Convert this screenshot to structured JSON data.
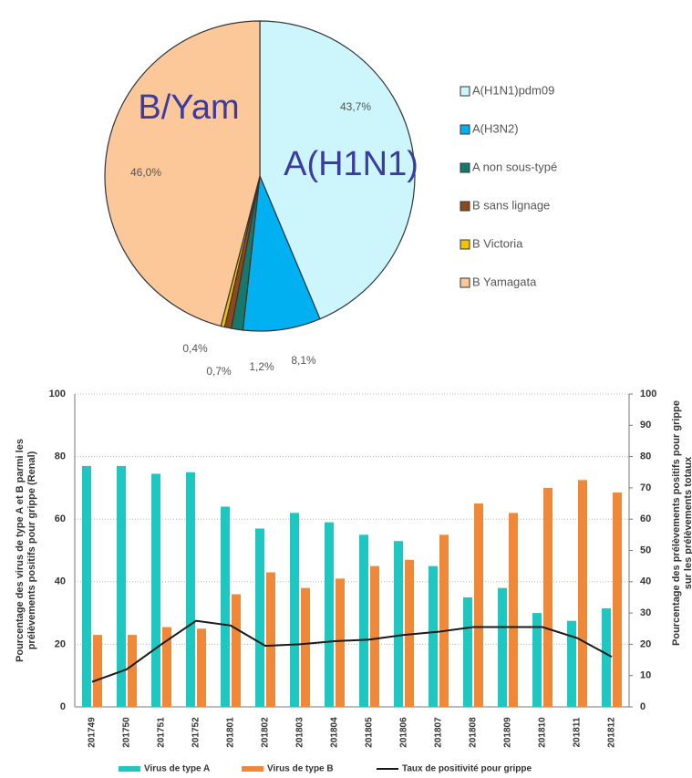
{
  "chart_data": [
    {
      "type": "pie",
      "annotations": [
        "B/Yam",
        "A(H1N1)"
      ],
      "categories": [
        "A(H1N1)pdm09",
        "A(H3N2)",
        "A non sous-typé",
        "B sans lignage",
        "B Victoria",
        "B Yamagata"
      ],
      "values": [
        43.7,
        8.1,
        1.2,
        0.7,
        0.4,
        46.0
      ],
      "value_labels": [
        "43,7%",
        "8,1%",
        "1,2%",
        "0,7%",
        "0,4%",
        "46,0%"
      ],
      "colors": [
        "#ccf6fb",
        "#00b0f0",
        "#17786c",
        "#8c4a1c",
        "#f2c200",
        "#fcc89a"
      ],
      "legend": "right"
    },
    {
      "type": "bar",
      "ylabel": [
        "Pourcentage des virus de type A et B parmi les",
        "prélèvements positifs pour grippe (Renal)"
      ],
      "y2label": [
        "Pourcentage des prélèvements positifs pour grippe",
        "sur les prélèvements totaux"
      ],
      "categories": [
        "201749",
        "201750",
        "201751",
        "201752",
        "201801",
        "201802",
        "201803",
        "201804",
        "201805",
        "201806",
        "201807",
        "201808",
        "201809",
        "201810",
        "201811",
        "201812"
      ],
      "series": [
        {
          "name": "Virus de type A",
          "type": "bar",
          "color": "#1ec8c0",
          "values": [
            77,
            77,
            74.5,
            75,
            64,
            57,
            62,
            59,
            55,
            53,
            45,
            35,
            38,
            30,
            27.5,
            31.5
          ]
        },
        {
          "name": "Virus de type B",
          "type": "bar",
          "color": "#f0883a",
          "values": [
            23,
            23,
            25.5,
            25,
            36,
            43,
            38,
            41,
            45,
            47,
            55,
            65,
            62,
            70,
            72.5,
            68.5
          ]
        },
        {
          "name": "Taux de positivité pour grippe",
          "type": "line",
          "axis": "y2",
          "color": "#1a1a1a",
          "values": [
            8,
            12,
            20,
            27.5,
            26,
            19.5,
            20,
            21,
            21.5,
            23,
            24,
            25.5,
            25.5,
            25.5,
            22,
            16
          ]
        }
      ],
      "ylim": [
        0,
        100
      ],
      "yticks": [
        0,
        20,
        40,
        60,
        80,
        100
      ],
      "y2lim": [
        0,
        100
      ],
      "y2ticks": [
        0,
        10,
        20,
        30,
        40,
        50,
        60,
        70,
        80,
        90,
        100
      ],
      "grid": true,
      "legend": "bottom"
    }
  ]
}
